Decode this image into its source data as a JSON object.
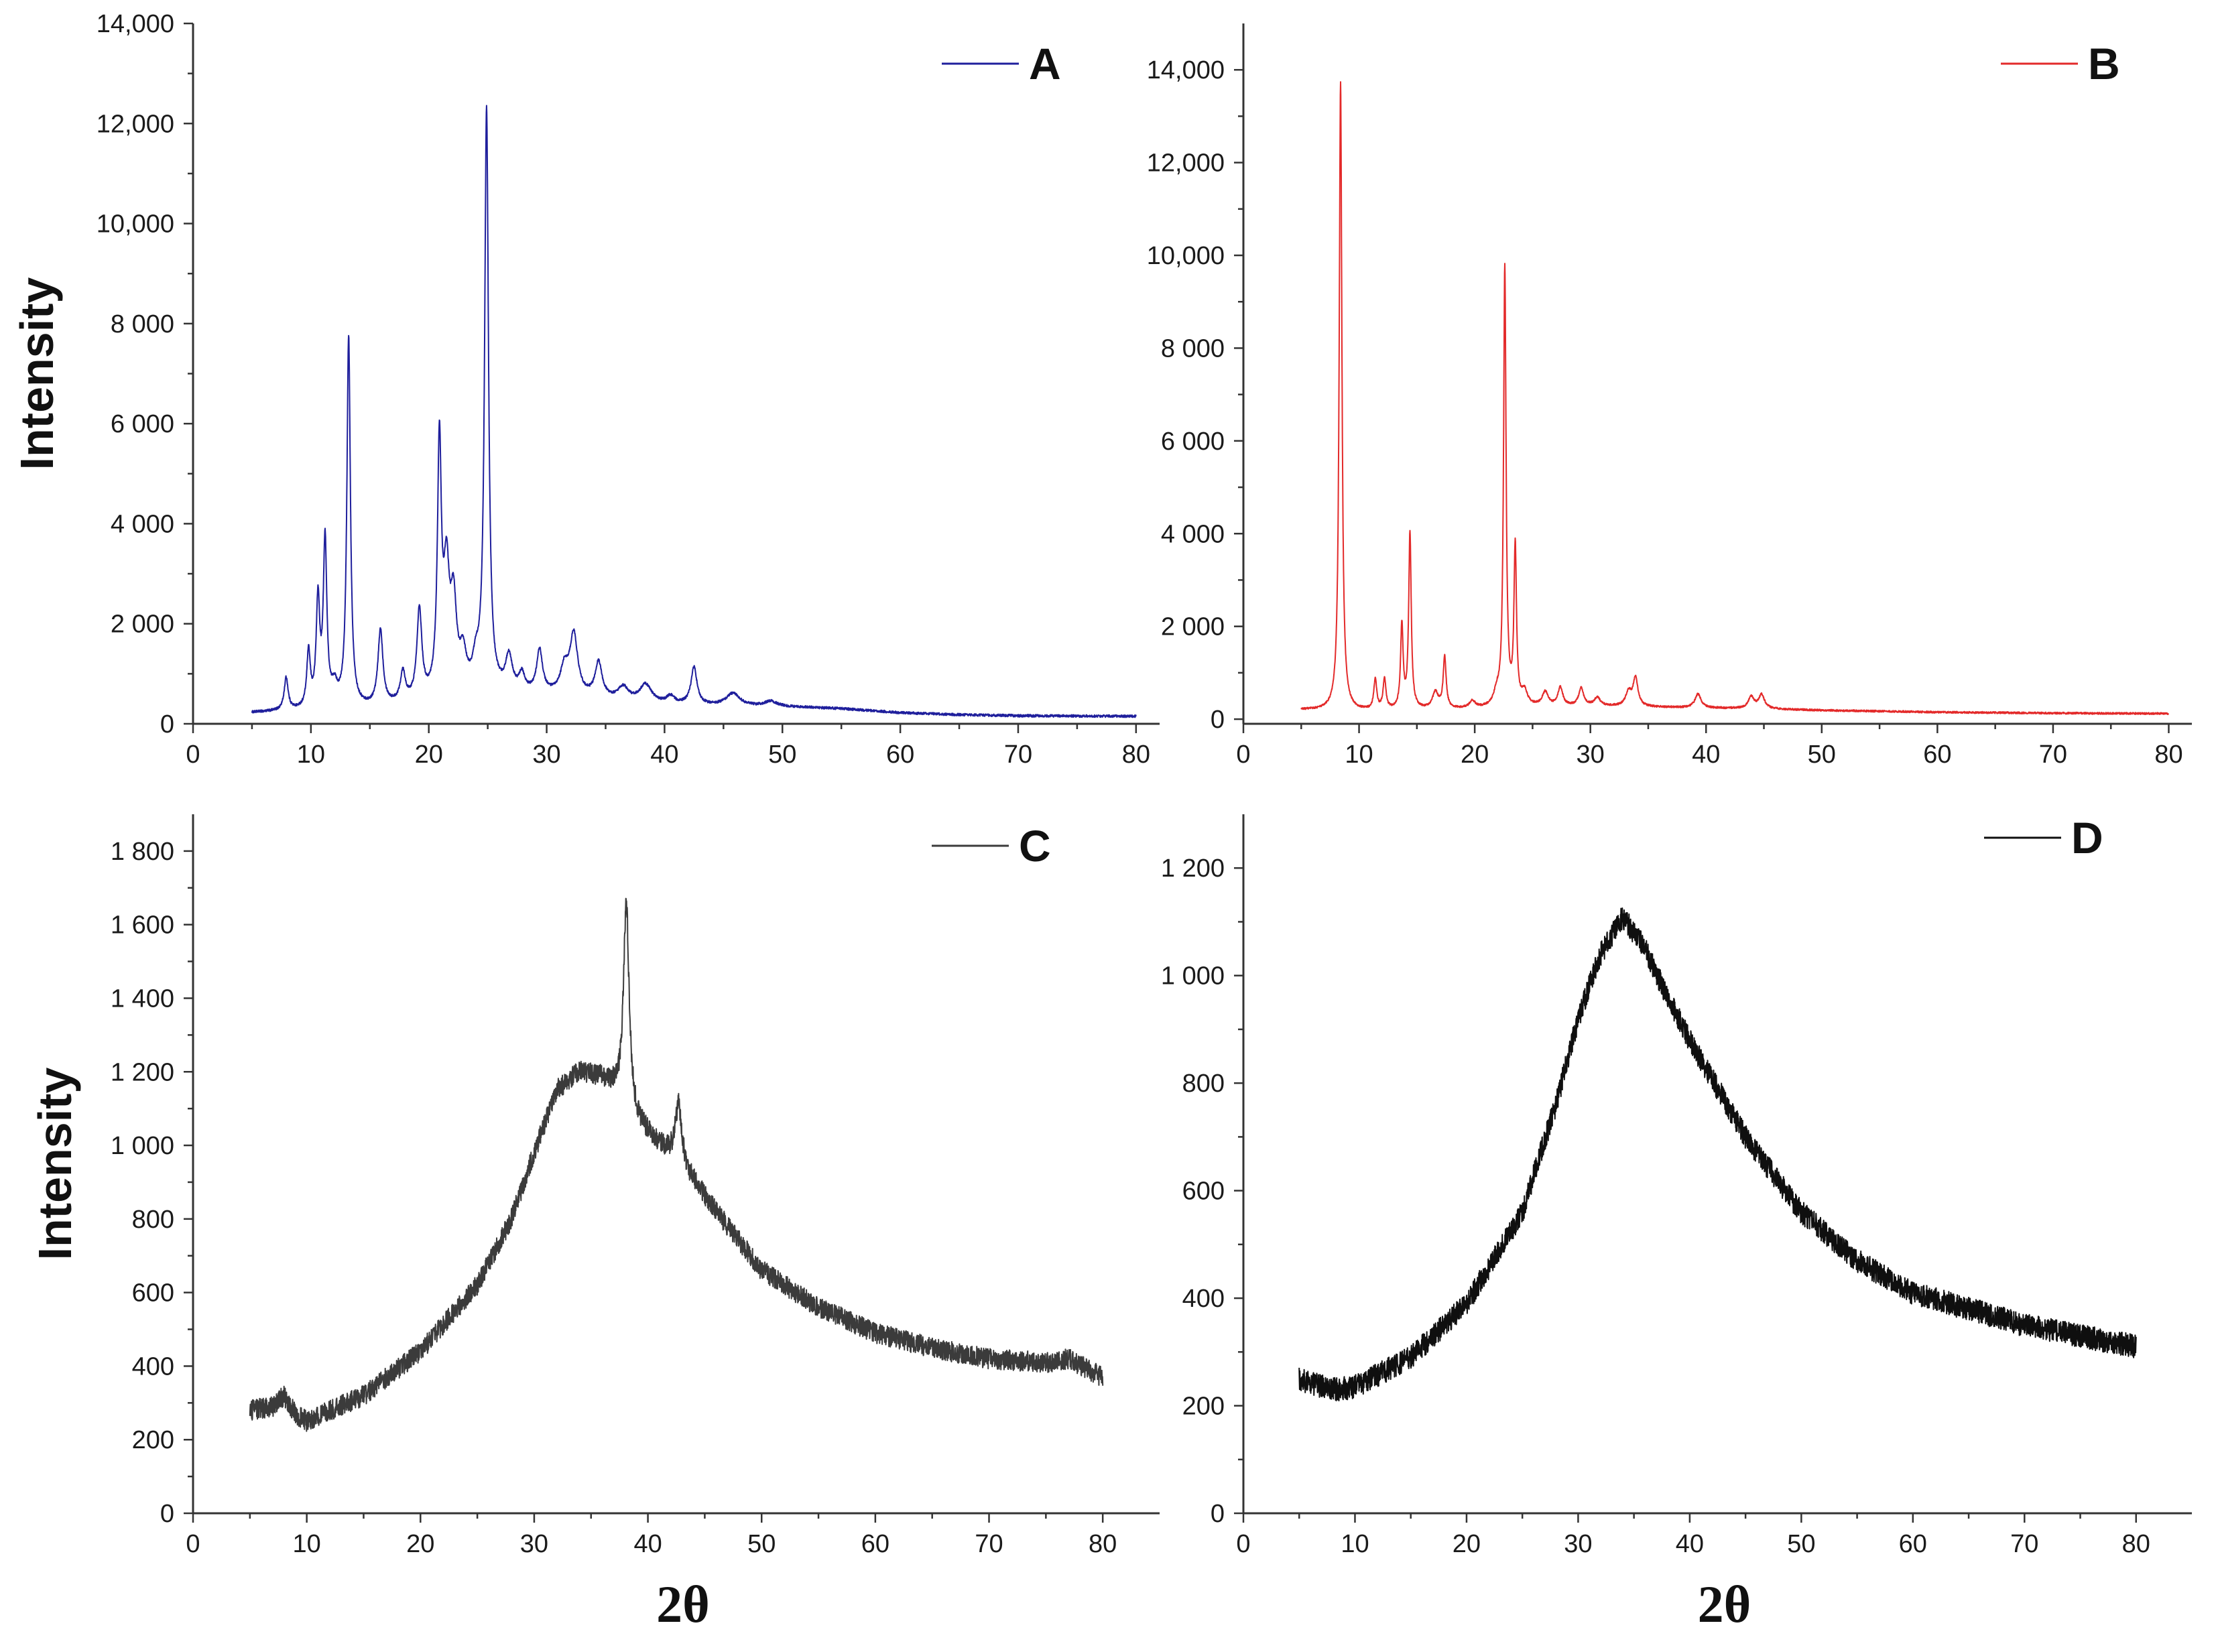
{
  "chart_data": [
    {
      "id": "A",
      "type": "line",
      "legend": "A",
      "color": "#1f1f9c",
      "ylabel": "Intensity",
      "xlabel": "",
      "xlim": [
        0,
        82
      ],
      "ylim": [
        0,
        14000
      ],
      "x_ticks": [
        0,
        10,
        20,
        30,
        40,
        50,
        60,
        70,
        80
      ],
      "x_tick_labels": [
        "0",
        "10",
        "20",
        "30",
        "40",
        "50",
        "60",
        "70",
        "80"
      ],
      "y_ticks": [
        0,
        2000,
        4000,
        6000,
        8000,
        10000,
        12000,
        14000
      ],
      "y_tick_labels": [
        "0",
        "2 000",
        "4 000",
        "6 000",
        "8 000",
        "10,000",
        "12,000",
        "14,000"
      ],
      "x_range": [
        5,
        80
      ],
      "noise": 25,
      "baseline": [
        [
          5,
          220
        ],
        [
          10,
          260
        ],
        [
          15,
          300
        ],
        [
          20,
          420
        ],
        [
          25,
          560
        ],
        [
          30,
          560
        ],
        [
          35,
          480
        ],
        [
          40,
          380
        ],
        [
          45,
          350
        ],
        [
          50,
          340
        ],
        [
          55,
          300
        ],
        [
          60,
          220
        ],
        [
          65,
          180
        ],
        [
          70,
          160
        ],
        [
          80,
          150
        ]
      ],
      "peaks": [
        [
          7.9,
          650,
          0.2
        ],
        [
          9.8,
          1100,
          0.18
        ],
        [
          10.6,
          2100,
          0.18
        ],
        [
          11.2,
          3300,
          0.18
        ],
        [
          12.0,
          350,
          0.3
        ],
        [
          13.2,
          7400,
          0.18
        ],
        [
          15.9,
          1500,
          0.25
        ],
        [
          17.8,
          600,
          0.25
        ],
        [
          19.2,
          1800,
          0.25
        ],
        [
          20.9,
          4950,
          0.2
        ],
        [
          21.5,
          2300,
          0.3
        ],
        [
          22.1,
          1700,
          0.3
        ],
        [
          22.9,
          700,
          0.35
        ],
        [
          24.0,
          500,
          0.35
        ],
        [
          24.9,
          11600,
          0.2
        ],
        [
          26.8,
          700,
          0.35
        ],
        [
          27.9,
          350,
          0.3
        ],
        [
          29.4,
          850,
          0.3
        ],
        [
          31.5,
          500,
          0.4
        ],
        [
          32.3,
          1200,
          0.4
        ],
        [
          34.4,
          700,
          0.35
        ],
        [
          36.5,
          250,
          0.5
        ],
        [
          38.4,
          350,
          0.6
        ],
        [
          40.5,
          150,
          0.4
        ],
        [
          42.5,
          750,
          0.3
        ],
        [
          45.8,
          250,
          0.7
        ],
        [
          49.0,
          100,
          0.6
        ]
      ]
    },
    {
      "id": "B",
      "type": "line",
      "legend": "B",
      "color": "#e32a2a",
      "ylabel": "",
      "xlabel": "",
      "xlim": [
        0,
        82
      ],
      "ylim": [
        -100,
        15000
      ],
      "x_ticks": [
        0,
        10,
        20,
        30,
        40,
        50,
        60,
        70,
        80
      ],
      "x_tick_labels": [
        "0",
        "10",
        "20",
        "30",
        "40",
        "50",
        "60",
        "70",
        "80"
      ],
      "y_ticks": [
        0,
        2000,
        4000,
        6000,
        8000,
        10000,
        12000,
        14000
      ],
      "y_tick_labels": [
        "0",
        "2 000",
        "4 000",
        "6 000",
        "8 000",
        "10,000",
        "12,000",
        "14,000"
      ],
      "x_range": [
        5,
        80
      ],
      "noise": 20,
      "baseline": [
        [
          5,
          200
        ],
        [
          10,
          170
        ],
        [
          15,
          200
        ],
        [
          20,
          220
        ],
        [
          25,
          260
        ],
        [
          30,
          280
        ],
        [
          35,
          260
        ],
        [
          40,
          240
        ],
        [
          45,
          220
        ],
        [
          50,
          190
        ],
        [
          60,
          150
        ],
        [
          70,
          130
        ],
        [
          80,
          120
        ]
      ],
      "peaks": [
        [
          8.4,
          13550,
          0.14
        ],
        [
          11.4,
          650,
          0.15
        ],
        [
          12.2,
          650,
          0.15
        ],
        [
          13.7,
          1800,
          0.13
        ],
        [
          14.4,
          3800,
          0.13
        ],
        [
          16.6,
          350,
          0.3
        ],
        [
          17.4,
          1100,
          0.15
        ],
        [
          19.8,
          150,
          0.3
        ],
        [
          21.9,
          250,
          0.3
        ],
        [
          22.6,
          9450,
          0.13
        ],
        [
          23.5,
          3400,
          0.13
        ],
        [
          24.3,
          300,
          0.3
        ],
        [
          26.1,
          300,
          0.3
        ],
        [
          27.4,
          400,
          0.25
        ],
        [
          29.2,
          380,
          0.25
        ],
        [
          30.6,
          180,
          0.3
        ],
        [
          33.3,
          300,
          0.3
        ],
        [
          33.9,
          600,
          0.25
        ],
        [
          39.3,
          300,
          0.3
        ],
        [
          43.9,
          250,
          0.3
        ],
        [
          44.8,
          300,
          0.3
        ]
      ]
    },
    {
      "id": "C",
      "type": "line",
      "legend": "C",
      "color": "#3b3b3b",
      "ylabel": "Intensity",
      "xlabel": "2θ",
      "xlim": [
        0,
        85
      ],
      "ylim": [
        0,
        1900
      ],
      "x_ticks": [
        0,
        10,
        20,
        30,
        40,
        50,
        60,
        70,
        80
      ],
      "x_tick_labels": [
        "0",
        "10",
        "20",
        "30",
        "40",
        "50",
        "60",
        "70",
        "80"
      ],
      "y_ticks": [
        0,
        200,
        400,
        600,
        800,
        1000,
        1200,
        1400,
        1600,
        1800
      ],
      "y_tick_labels": [
        "0",
        "200",
        "400",
        "600",
        "800",
        "1 000",
        "1 200",
        "1 400",
        "1 600",
        "1 800"
      ],
      "x_range": [
        5,
        80
      ],
      "noise": 28,
      "baseline": [
        [
          5,
          280
        ],
        [
          7,
          290
        ],
        [
          8,
          320
        ],
        [
          9,
          270
        ],
        [
          10,
          250
        ],
        [
          15,
          320
        ],
        [
          20,
          440
        ],
        [
          25,
          620
        ],
        [
          28,
          800
        ],
        [
          30,
          980
        ],
        [
          32,
          1150
        ],
        [
          34,
          1200
        ],
        [
          36,
          1180
        ],
        [
          37,
          1150
        ],
        [
          39,
          1060
        ],
        [
          41,
          1000
        ],
        [
          42,
          970
        ],
        [
          44,
          900
        ],
        [
          47,
          780
        ],
        [
          50,
          660
        ],
        [
          55,
          560
        ],
        [
          60,
          490
        ],
        [
          65,
          450
        ],
        [
          70,
          420
        ],
        [
          75,
          410
        ],
        [
          77,
          420
        ],
        [
          80,
          370
        ]
      ],
      "peaks": [
        [
          38.1,
          560,
          0.3
        ],
        [
          42.7,
          170,
          0.35
        ]
      ]
    },
    {
      "id": "D",
      "type": "line",
      "legend": "D",
      "color": "#0f0f0f",
      "ylabel": "",
      "xlabel": "2θ",
      "xlim": [
        0,
        85
      ],
      "ylim": [
        0,
        1300
      ],
      "x_ticks": [
        0,
        10,
        20,
        30,
        40,
        50,
        60,
        70,
        80
      ],
      "x_tick_labels": [
        "0",
        "10",
        "20",
        "30",
        "40",
        "50",
        "60",
        "70",
        "80"
      ],
      "y_ticks": [
        0,
        200,
        400,
        600,
        800,
        1000,
        1200
      ],
      "y_tick_labels": [
        "0",
        "200",
        "400",
        "600",
        "800",
        "1 000",
        "1 200"
      ],
      "x_range": [
        5,
        80
      ],
      "noise": 22,
      "baseline": [
        [
          5,
          250
        ],
        [
          8,
          230
        ],
        [
          10,
          235
        ],
        [
          15,
          290
        ],
        [
          20,
          390
        ],
        [
          25,
          560
        ],
        [
          28,
          760
        ],
        [
          30,
          920
        ],
        [
          32,
          1040
        ],
        [
          34,
          1110
        ],
        [
          36,
          1050
        ],
        [
          38,
          960
        ],
        [
          40,
          880
        ],
        [
          45,
          700
        ],
        [
          50,
          560
        ],
        [
          55,
          470
        ],
        [
          60,
          410
        ],
        [
          65,
          380
        ],
        [
          70,
          350
        ],
        [
          75,
          330
        ],
        [
          80,
          310
        ]
      ],
      "peaks": []
    }
  ]
}
